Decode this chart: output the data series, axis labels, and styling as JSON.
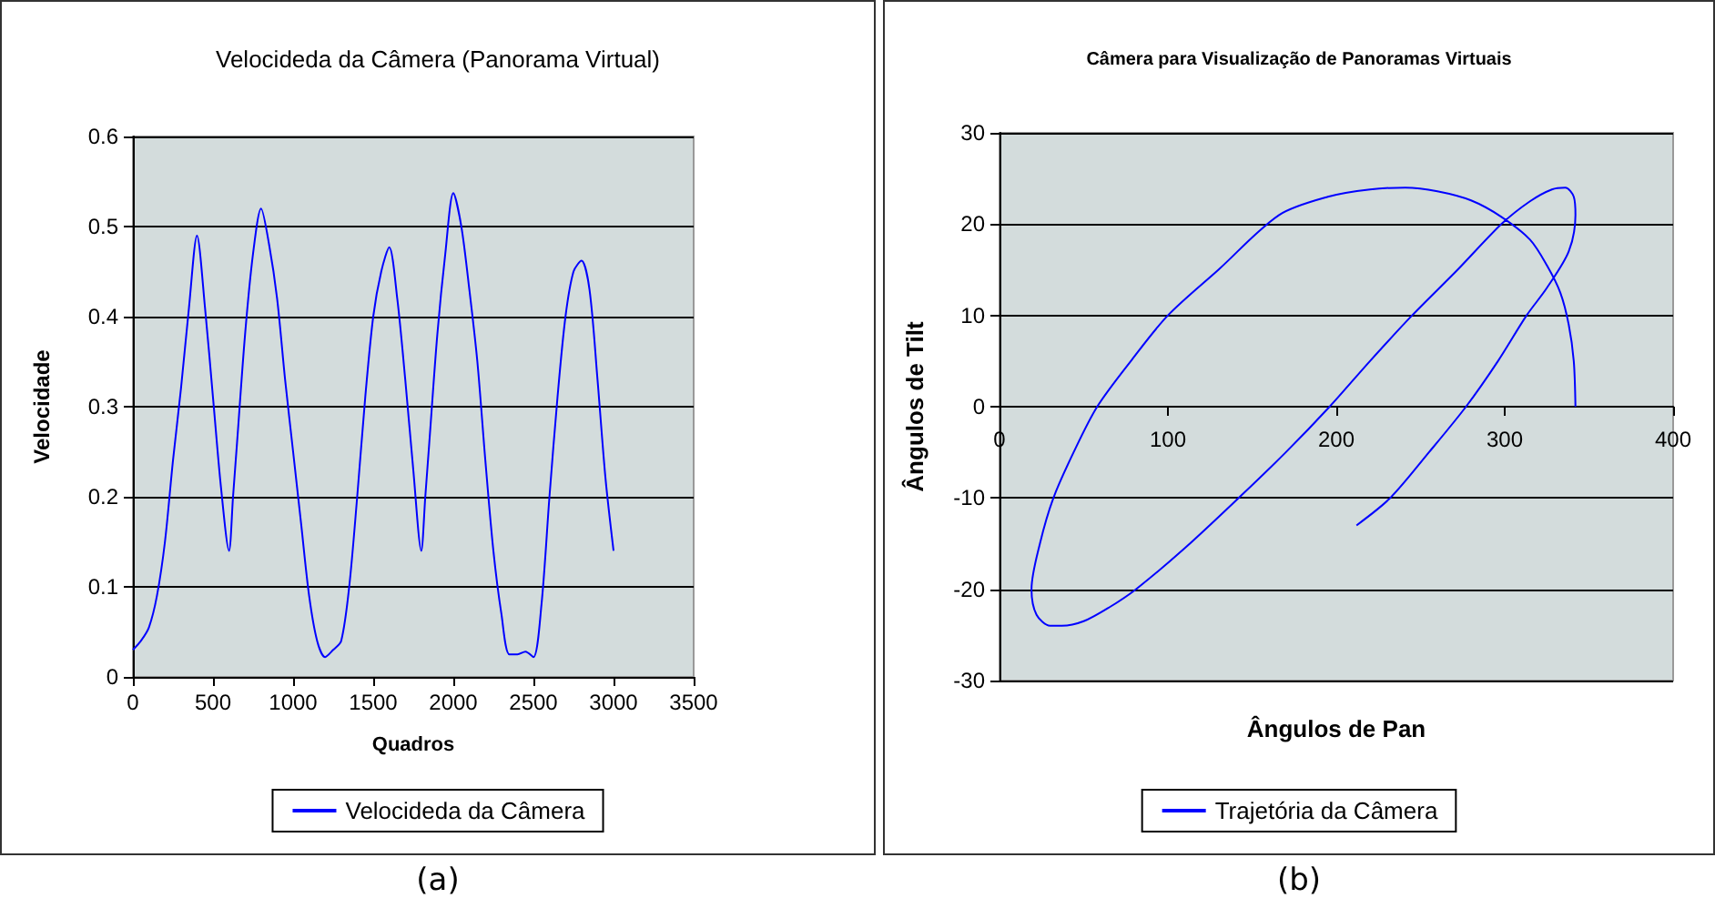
{
  "chart_data": [
    {
      "type": "line",
      "title": "Velocideda da Câmera (Panorama Virtual)",
      "xlabel": "Quadros",
      "ylabel": "Velocidade",
      "xlim": [
        0,
        3500
      ],
      "xticks": [
        0,
        500,
        1000,
        1500,
        2000,
        2500,
        3000,
        3500
      ],
      "ylim": [
        0,
        0.6
      ],
      "yticks": [
        0,
        0.1,
        0.2,
        0.3,
        0.4,
        0.5,
        0.6
      ],
      "grid": "y",
      "legend": "bottom",
      "marker": "none",
      "line_style": "solid",
      "annotations": [
        "(a)"
      ],
      "x": [
        0,
        50,
        100,
        150,
        200,
        250,
        300,
        350,
        400,
        450,
        500,
        550,
        600,
        625,
        650,
        700,
        750,
        800,
        850,
        900,
        950,
        1000,
        1050,
        1100,
        1150,
        1200,
        1250,
        1300,
        1350,
        1400,
        1450,
        1500,
        1550,
        1600,
        1650,
        1700,
        1750,
        1800,
        1825,
        1850,
        1900,
        1950,
        2000,
        2050,
        2100,
        2150,
        2200,
        2250,
        2300,
        2350,
        2400,
        2450,
        2500,
        2550,
        2600,
        2650,
        2700,
        2750,
        2800,
        2850,
        2900,
        2950,
        3000
      ],
      "series": [
        {
          "name": "Velocideda da Câmera",
          "color": "#0000ff",
          "values": [
            0.03,
            0.04,
            0.055,
            0.09,
            0.15,
            0.24,
            0.32,
            0.41,
            0.49,
            0.41,
            0.31,
            0.21,
            0.14,
            0.2,
            0.26,
            0.38,
            0.47,
            0.52,
            0.48,
            0.42,
            0.33,
            0.25,
            0.17,
            0.09,
            0.04,
            0.022,
            0.03,
            0.04,
            0.1,
            0.2,
            0.31,
            0.4,
            0.45,
            0.477,
            0.42,
            0.33,
            0.23,
            0.14,
            0.2,
            0.26,
            0.38,
            0.47,
            0.537,
            0.5,
            0.43,
            0.35,
            0.24,
            0.14,
            0.07,
            0.025,
            0.025,
            0.028,
            0.022,
            0.08,
            0.2,
            0.31,
            0.4,
            0.45,
            0.462,
            0.43,
            0.33,
            0.22,
            0.14
          ]
        }
      ]
    },
    {
      "type": "line",
      "title": "Câmera para Visualização de Panoramas Virtuais",
      "xlabel": "Ângulos de Pan",
      "ylabel": "Ângulos de Tilt",
      "xlim": [
        0,
        400
      ],
      "xticks": [
        0,
        100,
        200,
        300,
        400
      ],
      "ylim": [
        -30,
        30
      ],
      "yticks": [
        -30,
        -20,
        -10,
        0,
        10,
        20,
        30
      ],
      "grid": "y",
      "legend": "bottom",
      "marker": "none",
      "line_style": "solid",
      "annotations": [
        "(b)"
      ],
      "series": [
        {
          "name": "Trajetória da Câmera",
          "color": "#0000ff",
          "x": [
            342,
            341,
            338,
            333,
            325,
            315,
            298,
            280,
            260,
            241,
            220,
            195,
            166,
            130,
            100,
            78,
            58,
            44,
            32,
            24,
            19,
            22,
            30,
            37,
            50,
            65,
            81,
            110,
            142,
            170,
            196,
            220,
            245,
            272,
            298,
            315,
            328,
            336,
            341,
            342,
            338,
            325,
            313,
            296,
            277,
            255,
            232,
            212
          ],
          "values": [
            0,
            5,
            9,
            12.5,
            15.5,
            18.3,
            20.8,
            22.6,
            23.6,
            24,
            23.8,
            23,
            21,
            15,
            10,
            5,
            0,
            -5,
            -10,
            -15,
            -20,
            -22.8,
            -24,
            -24,
            -23.5,
            -22,
            -20,
            -15.5,
            -10,
            -5,
            0,
            5,
            10,
            15,
            20,
            22.5,
            23.8,
            24,
            23,
            21,
            17,
            13,
            10,
            5,
            0,
            -5,
            -10,
            -13
          ]
        }
      ]
    }
  ]
}
